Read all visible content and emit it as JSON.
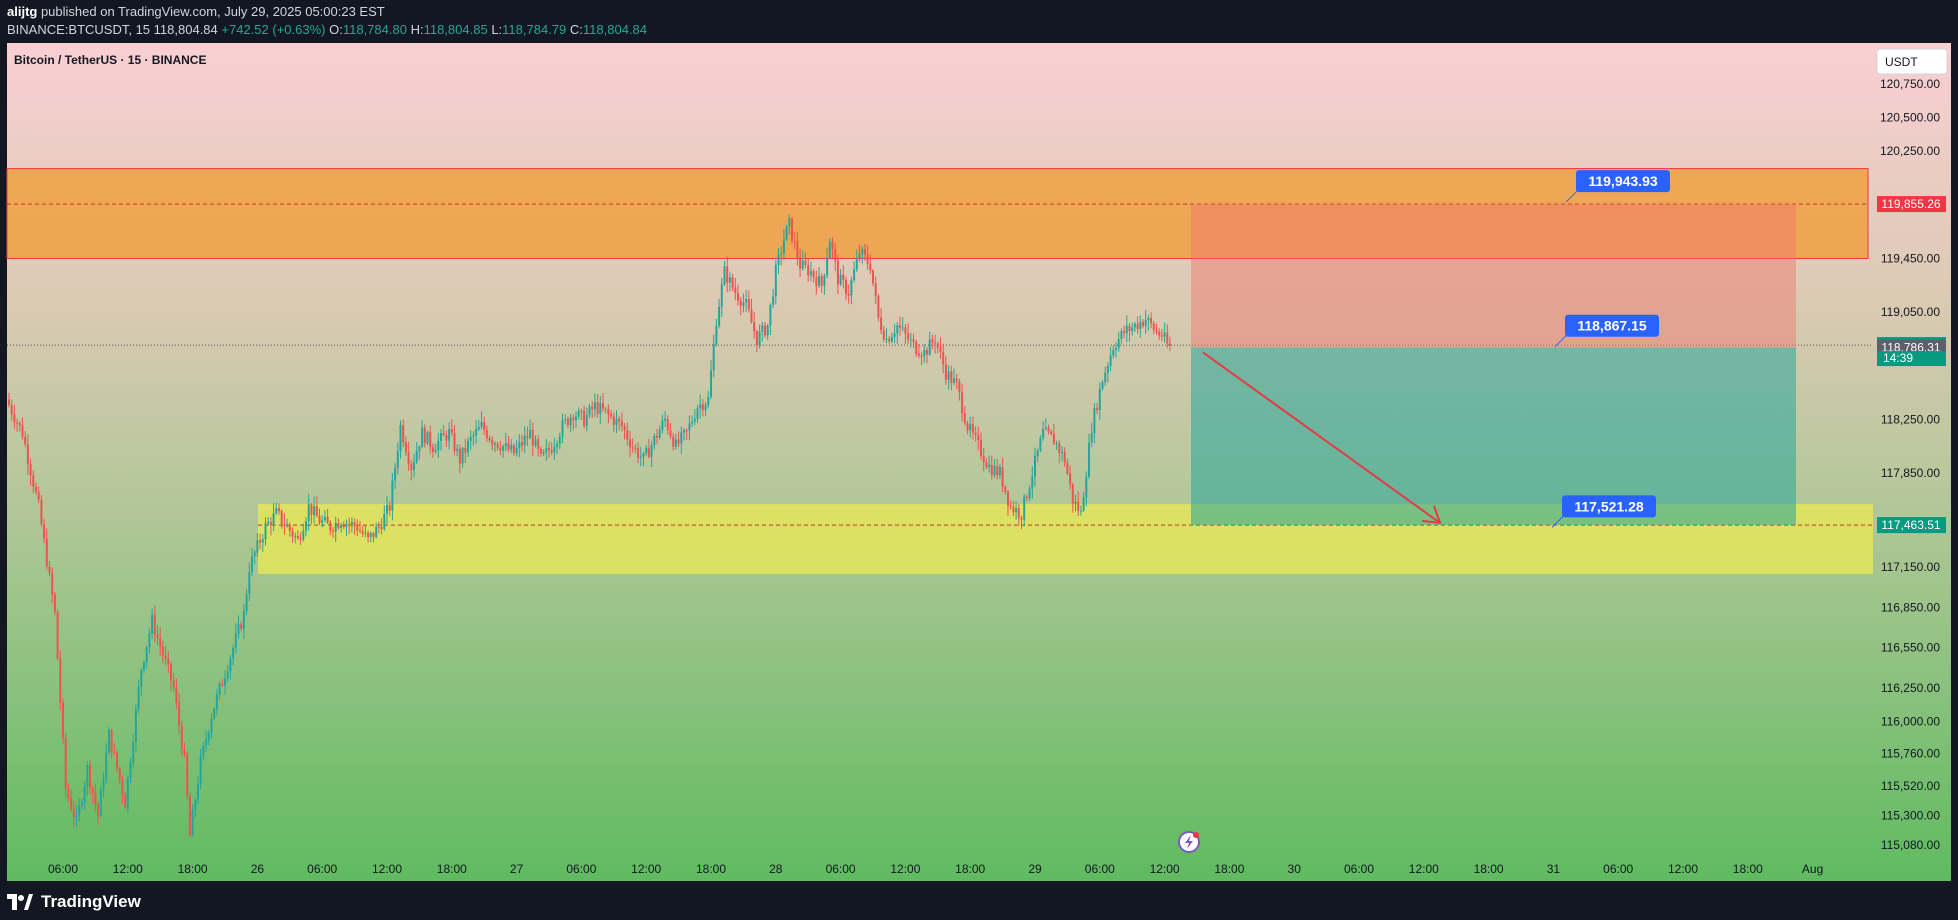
{
  "header": {
    "line1_user": "alijtg",
    "line1_rest": " published on TradingView.com, July 29, 2025 05:00:23 EST",
    "symbol": "BINANCE:BTCUSDT, 15",
    "last": "118,804.84",
    "change": "+742.52 (+0.63%)",
    "o_label": "O:",
    "o_val": "118,784.80",
    "h_label": "H:",
    "h_val": "118,804.85",
    "l_label": "L:",
    "l_val": "118,784.79",
    "c_label": "C:",
    "c_val": "118,804.84"
  },
  "pane": {
    "title": "Bitcoin / TetherUS · 15 · BINANCE",
    "currency": "USDT",
    "countdown": "14:39"
  },
  "footer": {
    "brand": "TradingView"
  },
  "colors": {
    "bg": "#131722",
    "up": "#26a69a",
    "down": "#ef5350",
    "orange_zone": "#f0a042",
    "yellow_zone": "#e4e55a",
    "label_blue": "#2962ff",
    "arrow": "#e63946"
  },
  "chart_data": {
    "type": "candlestick",
    "title": "Bitcoin / TetherUS · 15 · BINANCE",
    "ylim": [
      114950,
      120950
    ],
    "y_ticks": [
      120750,
      120500,
      120250,
      119450,
      119050,
      118250,
      117850,
      117150,
      116850,
      116550,
      116250,
      116000,
      115760,
      115520,
      115300,
      115080
    ],
    "y_tick_labels": [
      "120,750.00",
      "120,500.00",
      "120,250.00",
      "119,450.00",
      "119,050.00",
      "118,250.00",
      "117,850.00",
      "117,150.00",
      "116,850.00",
      "116,550.00",
      "116,250.00",
      "116,000.00",
      "115,760.00",
      "115,520.00",
      "115,300.00",
      "115,080.00"
    ],
    "x_labels": [
      {
        "label": "06:00",
        "i": 20
      },
      {
        "label": "12:00",
        "i": 44
      },
      {
        "label": "18:00",
        "i": 68
      },
      {
        "label": "26",
        "i": 92
      },
      {
        "label": "06:00",
        "i": 116
      },
      {
        "label": "12:00",
        "i": 140
      },
      {
        "label": "18:00",
        "i": 164
      },
      {
        "label": "27",
        "i": 188
      },
      {
        "label": "06:00",
        "i": 212
      },
      {
        "label": "12:00",
        "i": 236
      },
      {
        "label": "18:00",
        "i": 260
      },
      {
        "label": "28",
        "i": 284
      },
      {
        "label": "06:00",
        "i": 308
      },
      {
        "label": "12:00",
        "i": 332
      },
      {
        "label": "18:00",
        "i": 356
      },
      {
        "label": "29",
        "i": 380
      },
      {
        "label": "06:00",
        "i": 404
      },
      {
        "label": "12:00",
        "i": 428
      },
      {
        "label": "18:00",
        "i": 452
      },
      {
        "label": "30",
        "i": 476
      },
      {
        "label": "06:00",
        "i": 500
      },
      {
        "label": "12:00",
        "i": 524
      },
      {
        "label": "18:00",
        "i": 548
      },
      {
        "label": "31",
        "i": 572
      },
      {
        "label": "06:00",
        "i": 596
      },
      {
        "label": "12:00",
        "i": 620
      },
      {
        "label": "18:00",
        "i": 644
      },
      {
        "label": "Aug",
        "i": 668
      }
    ],
    "path_anchors": [
      [
        0,
        118400
      ],
      [
        6,
        118150
      ],
      [
        12,
        117600
      ],
      [
        18,
        116800
      ],
      [
        22,
        115500
      ],
      [
        26,
        115250
      ],
      [
        30,
        115650
      ],
      [
        34,
        115300
      ],
      [
        38,
        115900
      ],
      [
        44,
        115400
      ],
      [
        50,
        116400
      ],
      [
        54,
        116750
      ],
      [
        58,
        116500
      ],
      [
        62,
        116250
      ],
      [
        66,
        115700
      ],
      [
        68,
        115150
      ],
      [
        72,
        115700
      ],
      [
        76,
        116050
      ],
      [
        80,
        116300
      ],
      [
        84,
        116550
      ],
      [
        88,
        116800
      ],
      [
        90,
        117150
      ],
      [
        94,
        117350
      ],
      [
        96,
        117450
      ],
      [
        100,
        117550
      ],
      [
        104,
        117450
      ],
      [
        108,
        117350
      ],
      [
        112,
        117600
      ],
      [
        116,
        117500
      ],
      [
        120,
        117450
      ],
      [
        124,
        117500
      ],
      [
        130,
        117450
      ],
      [
        134,
        117350
      ],
      [
        138,
        117450
      ],
      [
        142,
        117600
      ],
      [
        146,
        118200
      ],
      [
        150,
        117900
      ],
      [
        154,
        118150
      ],
      [
        158,
        118050
      ],
      [
        164,
        118150
      ],
      [
        168,
        117950
      ],
      [
        172,
        118100
      ],
      [
        176,
        118200
      ],
      [
        180,
        118100
      ],
      [
        184,
        118050
      ],
      [
        188,
        118000
      ],
      [
        194,
        118150
      ],
      [
        198,
        117950
      ],
      [
        202,
        118050
      ],
      [
        206,
        118200
      ],
      [
        210,
        118300
      ],
      [
        214,
        118250
      ],
      [
        218,
        118350
      ],
      [
        222,
        118300
      ],
      [
        228,
        118200
      ],
      [
        232,
        118050
      ],
      [
        236,
        117950
      ],
      [
        240,
        118100
      ],
      [
        244,
        118250
      ],
      [
        248,
        118050
      ],
      [
        252,
        118150
      ],
      [
        256,
        118350
      ],
      [
        260,
        118400
      ],
      [
        263,
        119000
      ],
      [
        266,
        119350
      ],
      [
        270,
        119200
      ],
      [
        274,
        119100
      ],
      [
        278,
        118850
      ],
      [
        282,
        118950
      ],
      [
        285,
        119350
      ],
      [
        288,
        119600
      ],
      [
        290,
        119700
      ],
      [
        294,
        119400
      ],
      [
        298,
        119350
      ],
      [
        302,
        119250
      ],
      [
        305,
        119600
      ],
      [
        308,
        119300
      ],
      [
        312,
        119200
      ],
      [
        316,
        119500
      ],
      [
        320,
        119400
      ],
      [
        323,
        119000
      ],
      [
        326,
        118850
      ],
      [
        330,
        118950
      ],
      [
        336,
        118800
      ],
      [
        340,
        118750
      ],
      [
        344,
        118850
      ],
      [
        348,
        118600
      ],
      [
        352,
        118500
      ],
      [
        356,
        118200
      ],
      [
        360,
        118050
      ],
      [
        364,
        117900
      ],
      [
        368,
        117850
      ],
      [
        372,
        117600
      ],
      [
        376,
        117550
      ],
      [
        380,
        117850
      ],
      [
        384,
        118150
      ],
      [
        388,
        118100
      ],
      [
        392,
        117950
      ],
      [
        395,
        117650
      ],
      [
        398,
        117550
      ],
      [
        402,
        118200
      ],
      [
        406,
        118550
      ],
      [
        410,
        118800
      ],
      [
        414,
        118900
      ],
      [
        418,
        118950
      ],
      [
        422,
        119000
      ],
      [
        424,
        118950
      ],
      [
        426,
        118900
      ],
      [
        428,
        118880
      ],
      [
        430,
        118805
      ]
    ],
    "drawings": {
      "resistance_zone": [
        119450,
        120120
      ],
      "resistance_line": 119855.26,
      "support_zone": [
        117100,
        117620
      ],
      "support_line": 117463.51,
      "position_entry": 118786.31,
      "position_stop": 119855.26,
      "position_target": 117463.51,
      "labels": [
        {
          "text": "119,943.93",
          "value": 119943.93
        },
        {
          "text": "118,867.15",
          "value": 118867.15
        },
        {
          "text": "117,521.28",
          "value": 117521.28
        }
      ],
      "axis_badges": [
        {
          "text": "119,855.26",
          "value": 119855.26,
          "color": "#f23645"
        },
        {
          "text": "118,804.84",
          "value": 118804.84,
          "color": "#089981"
        },
        {
          "text": "118,786.31",
          "value": 118786.31,
          "color": "#5d606b"
        },
        {
          "text": "117,463.51",
          "value": 117463.51,
          "color": "#089981"
        }
      ]
    }
  }
}
